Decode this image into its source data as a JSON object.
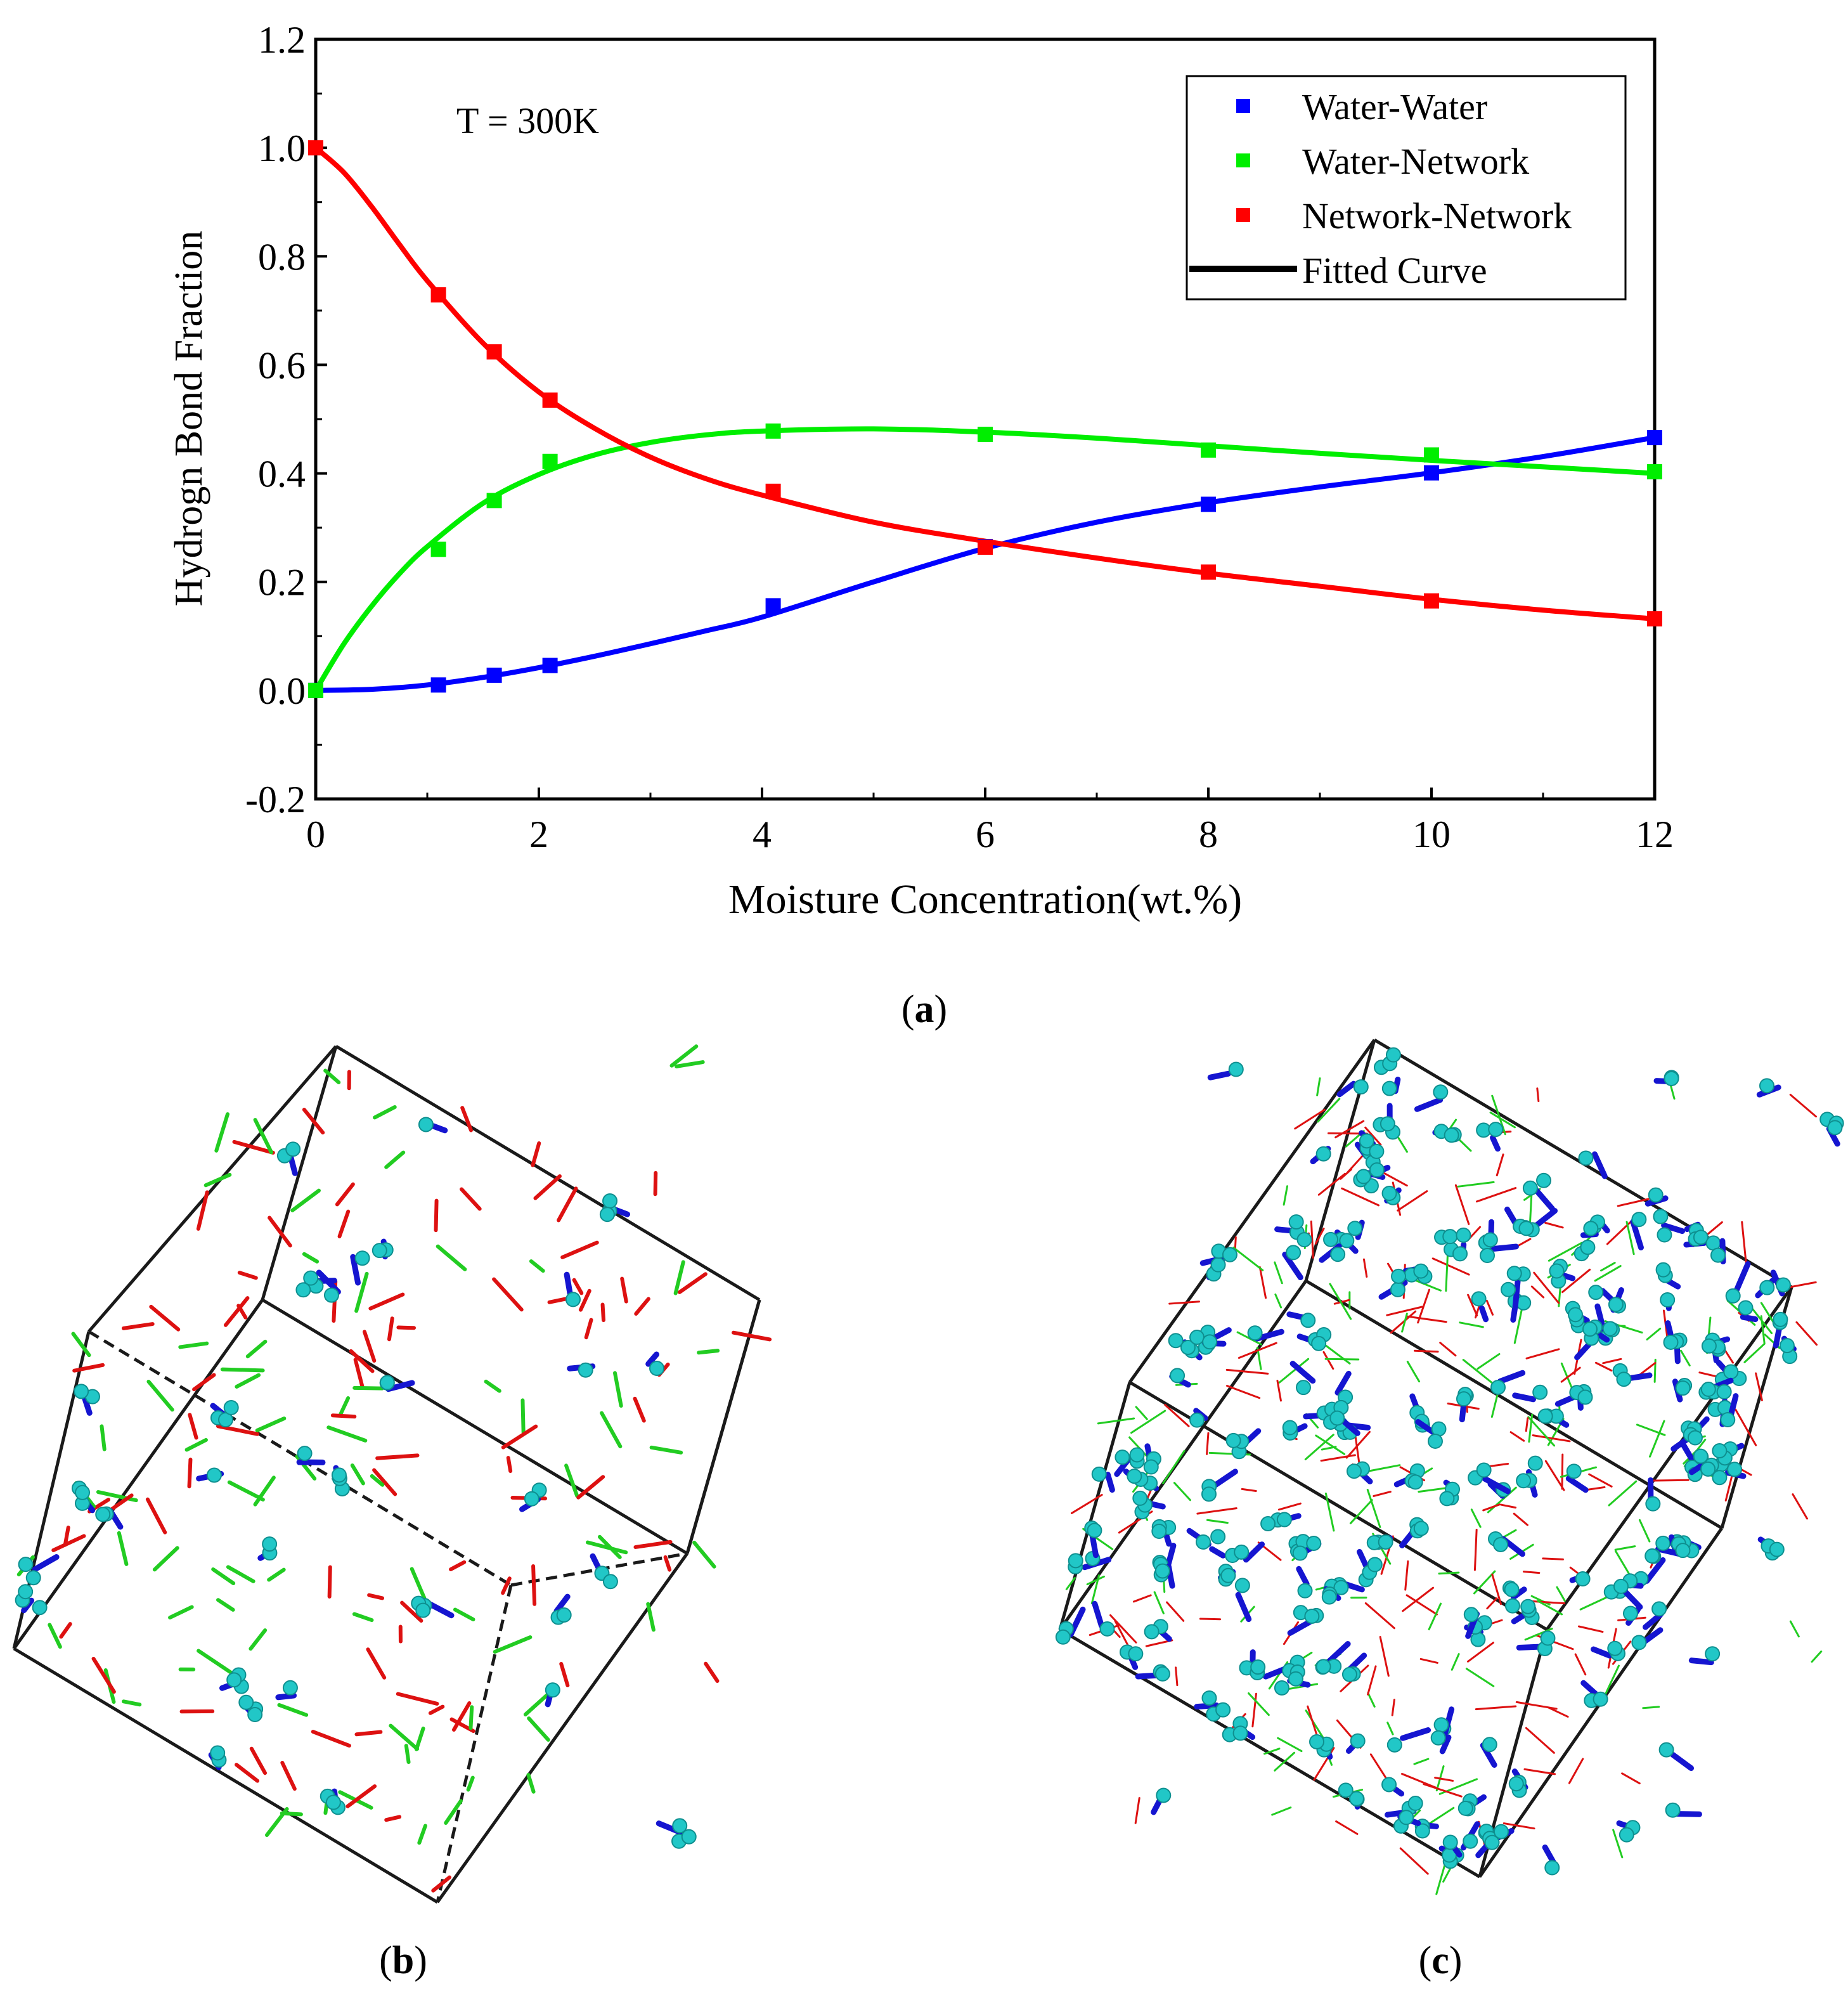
{
  "chart_data": {
    "type": "scatter",
    "title": "",
    "annotation": "T = 300K",
    "xlabel": "Moisture Concentration(wt.%)",
    "ylabel": "Hydrogn Bond Fraction",
    "xlim": [
      0,
      12
    ],
    "ylim": [
      -0.2,
      1.2
    ],
    "x_ticks": [
      0,
      2,
      4,
      6,
      8,
      10,
      12
    ],
    "y_ticks": [
      -0.2,
      0.0,
      0.2,
      0.4,
      0.6,
      0.8,
      1.0,
      1.2
    ],
    "x_tick_labels": [
      "0",
      "2",
      "4",
      "6",
      "8",
      "10",
      "12"
    ],
    "y_tick_labels": [
      "-0.2",
      "0.0",
      "0.2",
      "0.4",
      "0.6",
      "0.8",
      "1.0",
      "1.2"
    ],
    "legend_position": "top-right",
    "legend_fit_label": "Fitted Curve",
    "series": [
      {
        "name": "Water-Water",
        "color": "#0000ff",
        "x": [
          0,
          1.1,
          1.6,
          2.1,
          4.1,
          6,
          8,
          10,
          12
        ],
        "values": [
          0.0,
          0.01,
          0.028,
          0.046,
          0.156,
          0.265,
          0.343,
          0.401,
          0.466
        ],
        "fit_x": [
          0,
          0.5,
          1,
          1.5,
          2,
          2.5,
          3,
          3.5,
          4,
          5,
          6,
          7,
          8,
          9,
          10,
          11,
          12
        ],
        "fit_y": [
          0.0,
          0.002,
          0.01,
          0.024,
          0.042,
          0.063,
          0.086,
          0.11,
          0.135,
          0.2,
          0.262,
          0.31,
          0.346,
          0.375,
          0.401,
          0.431,
          0.466
        ]
      },
      {
        "name": "Water-Network",
        "color": "#00ee00",
        "x": [
          0,
          1.1,
          1.6,
          2.1,
          4.1,
          6,
          8,
          10,
          12
        ],
        "values": [
          0.0,
          0.26,
          0.35,
          0.422,
          0.478,
          0.472,
          0.443,
          0.434,
          0.403
        ],
        "fit_x": [
          0,
          0.25,
          0.5,
          0.75,
          1,
          1.5,
          2,
          2.5,
          3,
          3.5,
          4,
          5,
          6,
          7,
          8,
          9,
          10,
          11,
          12
        ],
        "fit_y": [
          0.0,
          0.085,
          0.155,
          0.215,
          0.265,
          0.345,
          0.398,
          0.434,
          0.457,
          0.471,
          0.478,
          0.482,
          0.476,
          0.465,
          0.451,
          0.437,
          0.424,
          0.412,
          0.4
        ]
      },
      {
        "name": "Network-Network",
        "color": "#ff0000",
        "x": [
          0,
          1.1,
          1.6,
          2.1,
          4.1,
          6,
          8,
          10,
          12
        ],
        "values": [
          1.0,
          0.729,
          0.624,
          0.535,
          0.367,
          0.264,
          0.218,
          0.165,
          0.132
        ],
        "fit_x": [
          0,
          0.25,
          0.5,
          0.75,
          1,
          1.5,
          2,
          2.5,
          3,
          3.5,
          4,
          5,
          6,
          7,
          8,
          9,
          10,
          11,
          12
        ],
        "fit_y": [
          1.0,
          0.955,
          0.892,
          0.822,
          0.755,
          0.64,
          0.55,
          0.483,
          0.43,
          0.39,
          0.36,
          0.31,
          0.275,
          0.244,
          0.216,
          0.192,
          0.168,
          0.148,
          0.132
        ]
      }
    ]
  },
  "captions": {
    "a": "a",
    "b": "b",
    "c": "c"
  },
  "snapshot_colors": {
    "frame": "#1a1a1a",
    "water_atoms": "#21c7c7",
    "water_bonds": "#1515d0",
    "network_green": "#22cc22",
    "network_red": "#dd1111"
  }
}
